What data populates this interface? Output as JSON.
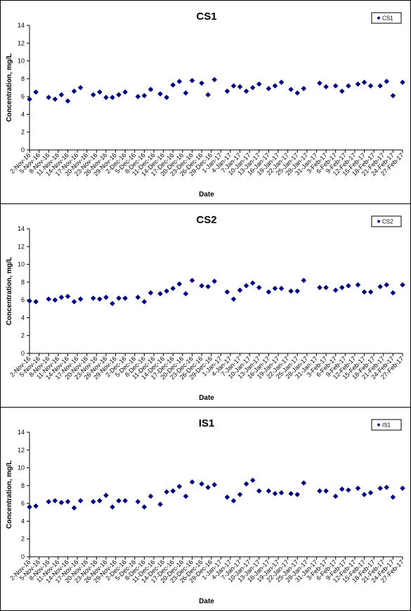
{
  "chart_data": [
    {
      "type": "scatter",
      "title": "CS1",
      "xlabel": "Date",
      "ylabel": "Concentration, mg/L",
      "ylim": [
        0,
        14
      ],
      "yticks": [
        "0",
        "2",
        "4",
        "6",
        "8",
        "10",
        "12",
        "14"
      ],
      "grid": false,
      "legend": "top-right",
      "marker_color": "#000080",
      "xlim": [
        "2016-11-02",
        "2017-02-27"
      ],
      "x_tick_labels": [
        "2-Nov-16",
        "5-Nov-16",
        "8-Nov-16",
        "11-Nov-16",
        "14-Nov-16",
        "17-Nov-16",
        "20-Nov-16",
        "23-Nov-16",
        "26-Nov-16",
        "29-Nov-16",
        "2-Dec-16",
        "5-Dec-16",
        "8-Dec-16",
        "11-Dec-16",
        "14-Dec-16",
        "17-Dec-16",
        "20-Dec-16",
        "23-Dec-16",
        "26-Dec-16",
        "29-Dec-16",
        "1-Jan-17",
        "4-Jan-17",
        "7-Jan-17",
        "10-Jan-17",
        "13-Jan-17",
        "16-Jan-17",
        "19-Jan-17",
        "22-Jan-17",
        "25-Jan-17",
        "28-Jan-17",
        "31-Jan-17",
        "3-Feb-17",
        "6-Feb-17",
        "9-Feb-17",
        "12-Feb-17",
        "15-Feb-17",
        "18-Feb-17",
        "21-Feb-17",
        "24-Feb-17",
        "27-Feb-17"
      ],
      "series": [
        {
          "name": "CS1",
          "x": [
            "2016-11-02",
            "2016-11-04",
            "2016-11-08",
            "2016-11-10",
            "2016-11-12",
            "2016-11-14",
            "2016-11-16",
            "2016-11-18",
            "2016-11-22",
            "2016-11-24",
            "2016-11-26",
            "2016-11-28",
            "2016-11-30",
            "2016-12-02",
            "2016-12-06",
            "2016-12-08",
            "2016-12-10",
            "2016-12-13",
            "2016-12-15",
            "2016-12-17",
            "2016-12-19",
            "2016-12-21",
            "2016-12-23",
            "2016-12-26",
            "2016-12-28",
            "2016-12-30",
            "2017-01-03",
            "2017-01-05",
            "2017-01-07",
            "2017-01-09",
            "2017-01-11",
            "2017-01-13",
            "2017-01-16",
            "2017-01-18",
            "2017-01-20",
            "2017-01-23",
            "2017-01-25",
            "2017-01-27",
            "2017-02-01",
            "2017-02-03",
            "2017-02-06",
            "2017-02-08",
            "2017-02-10",
            "2017-02-13",
            "2017-02-15",
            "2017-02-17",
            "2017-02-20",
            "2017-02-22",
            "2017-02-24",
            "2017-02-27"
          ],
          "values": [
            5.7,
            6.5,
            5.9,
            5.7,
            6.2,
            5.5,
            6.6,
            7.0,
            6.2,
            6.5,
            5.9,
            5.9,
            6.2,
            6.5,
            6.0,
            6.1,
            6.8,
            6.3,
            5.9,
            7.3,
            7.7,
            6.4,
            7.8,
            7.5,
            6.2,
            7.9,
            6.6,
            7.2,
            7.1,
            6.6,
            7.0,
            7.4,
            6.9,
            7.2,
            7.6,
            6.8,
            6.4,
            6.9,
            7.5,
            7.1,
            7.2,
            6.6,
            7.2,
            7.4,
            7.6,
            7.2,
            7.2,
            7.7,
            6.1,
            7.6
          ]
        }
      ]
    },
    {
      "type": "scatter",
      "title": "CS2",
      "xlabel": "Date",
      "ylabel": "Concentration, mg/L",
      "ylim": [
        0,
        14
      ],
      "yticks": [
        "0",
        "2",
        "4",
        "6",
        "8",
        "10",
        "12",
        "14"
      ],
      "grid": false,
      "legend": "top-right",
      "marker_color": "#000080",
      "xlim": [
        "2016-11-02",
        "2017-02-27"
      ],
      "x_tick_labels": [
        "2-Nov-16",
        "5-Nov-16",
        "8-Nov-16",
        "11-Nov-16",
        "14-Nov-16",
        "17-Nov-16",
        "20-Nov-16",
        "23-Nov-16",
        "26-Nov-16",
        "29-Nov-16",
        "2-Dec-16",
        "5-Dec-16",
        "8-Dec-16",
        "11-Dec-16",
        "14-Dec-16",
        "17-Dec-16",
        "20-Dec-16",
        "23-Dec-16",
        "26-Dec-16",
        "29-Dec-16",
        "1-Jan-17",
        "4-Jan-17",
        "7-Jan-17",
        "10-Jan-17",
        "13-Jan-17",
        "16-Jan-17",
        "19-Jan-17",
        "22-Jan-17",
        "25-Jan-17",
        "28-Jan-17",
        "31-Jan-17",
        "3-Feb-17",
        "6-Feb-17",
        "9-Feb-17",
        "12-Feb-17",
        "15-Feb-17",
        "18-Feb-17",
        "21-Feb-17",
        "24-Feb-17",
        "27-Feb-17"
      ],
      "series": [
        {
          "name": "CS2",
          "x": [
            "2016-11-02",
            "2016-11-04",
            "2016-11-08",
            "2016-11-10",
            "2016-11-12",
            "2016-11-14",
            "2016-11-16",
            "2016-11-18",
            "2016-11-22",
            "2016-11-24",
            "2016-11-26",
            "2016-11-28",
            "2016-11-30",
            "2016-12-02",
            "2016-12-06",
            "2016-12-08",
            "2016-12-10",
            "2016-12-13",
            "2016-12-15",
            "2016-12-17",
            "2016-12-19",
            "2016-12-21",
            "2016-12-23",
            "2016-12-26",
            "2016-12-28",
            "2016-12-30",
            "2017-01-03",
            "2017-01-05",
            "2017-01-07",
            "2017-01-09",
            "2017-01-11",
            "2017-01-13",
            "2017-01-16",
            "2017-01-18",
            "2017-01-20",
            "2017-01-23",
            "2017-01-25",
            "2017-01-27",
            "2017-02-01",
            "2017-02-03",
            "2017-02-06",
            "2017-02-08",
            "2017-02-10",
            "2017-02-13",
            "2017-02-15",
            "2017-02-17",
            "2017-02-20",
            "2017-02-22",
            "2017-02-24",
            "2017-02-27"
          ],
          "values": [
            5.9,
            5.8,
            6.1,
            6.0,
            6.3,
            6.4,
            5.8,
            6.1,
            6.2,
            6.1,
            6.3,
            5.6,
            6.2,
            6.2,
            6.3,
            5.8,
            6.8,
            6.7,
            7.0,
            7.3,
            7.8,
            6.7,
            8.2,
            7.6,
            7.5,
            8.1,
            6.9,
            6.1,
            7.1,
            7.6,
            7.9,
            7.4,
            6.9,
            7.3,
            7.3,
            7.0,
            7.0,
            8.2,
            7.4,
            7.4,
            7.1,
            7.4,
            7.6,
            7.7,
            6.9,
            6.9,
            7.5,
            7.7,
            6.8,
            7.7
          ]
        }
      ]
    },
    {
      "type": "scatter",
      "title": "IS1",
      "xlabel": "Date",
      "ylabel": "Concentration, mg/L",
      "ylim": [
        0,
        14
      ],
      "yticks": [
        "0",
        "2",
        "4",
        "6",
        "8",
        "10",
        "12",
        "14"
      ],
      "grid": false,
      "legend": "top-right",
      "marker_color": "#000080",
      "xlim": [
        "2016-11-02",
        "2017-02-27"
      ],
      "x_tick_labels": [
        "2-Nov-16",
        "5-Nov-16",
        "8-Nov-16",
        "11-Nov-16",
        "14-Nov-16",
        "17-Nov-16",
        "20-Nov-16",
        "23-Nov-16",
        "26-Nov-16",
        "29-Nov-16",
        "2-Dec-16",
        "5-Dec-16",
        "8-Dec-16",
        "11-Dec-16",
        "14-Dec-16",
        "17-Dec-16",
        "20-Dec-16",
        "23-Dec-16",
        "26-Dec-16",
        "29-Dec-16",
        "1-Jan-17",
        "4-Jan-17",
        "7-Jan-17",
        "10-Jan-17",
        "13-Jan-17",
        "16-Jan-17",
        "19-Jan-17",
        "22-Jan-17",
        "25-Jan-17",
        "28-Jan-17",
        "31-Jan-17",
        "3-Feb-17",
        "6-Feb-17",
        "9-Feb-17",
        "12-Feb-17",
        "15-Feb-17",
        "18-Feb-17",
        "21-Feb-17",
        "24-Feb-17",
        "27-Feb-17"
      ],
      "series": [
        {
          "name": "IS1",
          "x": [
            "2016-11-02",
            "2016-11-04",
            "2016-11-08",
            "2016-11-10",
            "2016-11-12",
            "2016-11-14",
            "2016-11-16",
            "2016-11-18",
            "2016-11-22",
            "2016-11-24",
            "2016-11-26",
            "2016-11-28",
            "2016-11-30",
            "2016-12-02",
            "2016-12-06",
            "2016-12-08",
            "2016-12-10",
            "2016-12-13",
            "2016-12-15",
            "2016-12-17",
            "2016-12-19",
            "2016-12-21",
            "2016-12-23",
            "2016-12-26",
            "2016-12-28",
            "2016-12-30",
            "2017-01-03",
            "2017-01-05",
            "2017-01-07",
            "2017-01-09",
            "2017-01-11",
            "2017-01-13",
            "2017-01-16",
            "2017-01-18",
            "2017-01-20",
            "2017-01-23",
            "2017-01-25",
            "2017-01-27",
            "2017-02-01",
            "2017-02-03",
            "2017-02-06",
            "2017-02-08",
            "2017-02-10",
            "2017-02-13",
            "2017-02-15",
            "2017-02-17",
            "2017-02-20",
            "2017-02-22",
            "2017-02-24",
            "2017-02-27"
          ],
          "values": [
            5.6,
            5.7,
            6.2,
            6.3,
            6.1,
            6.2,
            5.5,
            6.3,
            6.2,
            6.3,
            6.9,
            5.6,
            6.3,
            6.3,
            6.2,
            5.6,
            6.8,
            5.9,
            7.3,
            7.4,
            7.9,
            6.8,
            8.4,
            8.2,
            7.8,
            8.1,
            6.7,
            6.3,
            7.0,
            8.2,
            8.6,
            7.4,
            7.4,
            7.1,
            7.2,
            7.1,
            7.0,
            8.3,
            7.4,
            7.4,
            6.8,
            7.6,
            7.5,
            7.7,
            7.0,
            7.2,
            7.7,
            7.8,
            6.7,
            7.7
          ]
        }
      ]
    }
  ]
}
